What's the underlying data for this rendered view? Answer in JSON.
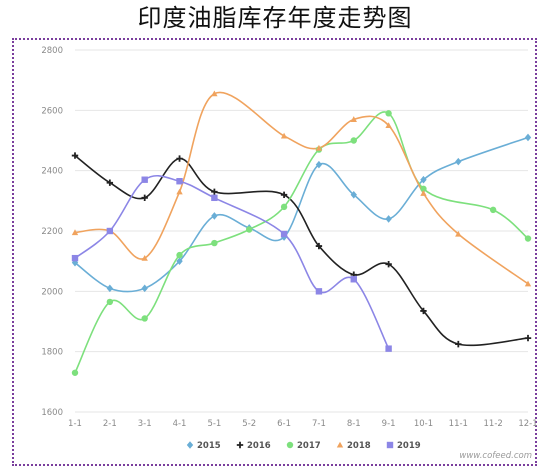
{
  "title": "印度油脂库存年度走势图",
  "source": "www.cofeed.com",
  "colors": {
    "frame": "#7a3e9d",
    "grid": "#e6e6e6"
  },
  "chart_data": {
    "type": "line",
    "categories": [
      "1-1",
      "2-1",
      "3-1",
      "4-1",
      "5-1",
      "5-2",
      "6-1",
      "7-1",
      "8-1",
      "9-1",
      "10-1",
      "11-1",
      "11-2",
      "12-1"
    ],
    "ylim": [
      1600,
      2800
    ],
    "yticks": [
      1600,
      1800,
      2000,
      2200,
      2400,
      2600,
      2800
    ],
    "grid": "horizontal",
    "legend_position": "bottom",
    "series": [
      {
        "name": "2015",
        "color": "#6aaed6",
        "marker": "diamond",
        "values": [
          2095,
          2010,
          2010,
          2100,
          2250,
          2210,
          2180,
          2420,
          2320,
          2240,
          2370,
          2430,
          null,
          2510
        ]
      },
      {
        "name": "2016",
        "color": "#222222",
        "marker": "plus",
        "values": [
          2450,
          2360,
          2310,
          2440,
          2330,
          null,
          2320,
          2150,
          2055,
          2090,
          1935,
          1825,
          null,
          1845
        ]
      },
      {
        "name": "2017",
        "color": "#7de07d",
        "marker": "circle",
        "values": [
          1730,
          1965,
          1910,
          2120,
          2160,
          2205,
          2280,
          2470,
          2500,
          2590,
          2340,
          null,
          2270,
          2175
        ]
      },
      {
        "name": "2018",
        "color": "#f0a35e",
        "marker": "triangle",
        "values": [
          2195,
          2200,
          2110,
          2330,
          2655,
          null,
          2515,
          2475,
          2570,
          2550,
          2325,
          2190,
          null,
          2025
        ]
      },
      {
        "name": "2019",
        "color": "#8c86e6",
        "marker": "square",
        "values": [
          2110,
          2200,
          2370,
          2365,
          2310,
          null,
          2190,
          2000,
          2040,
          1810,
          null,
          null,
          null,
          null
        ]
      }
    ]
  }
}
